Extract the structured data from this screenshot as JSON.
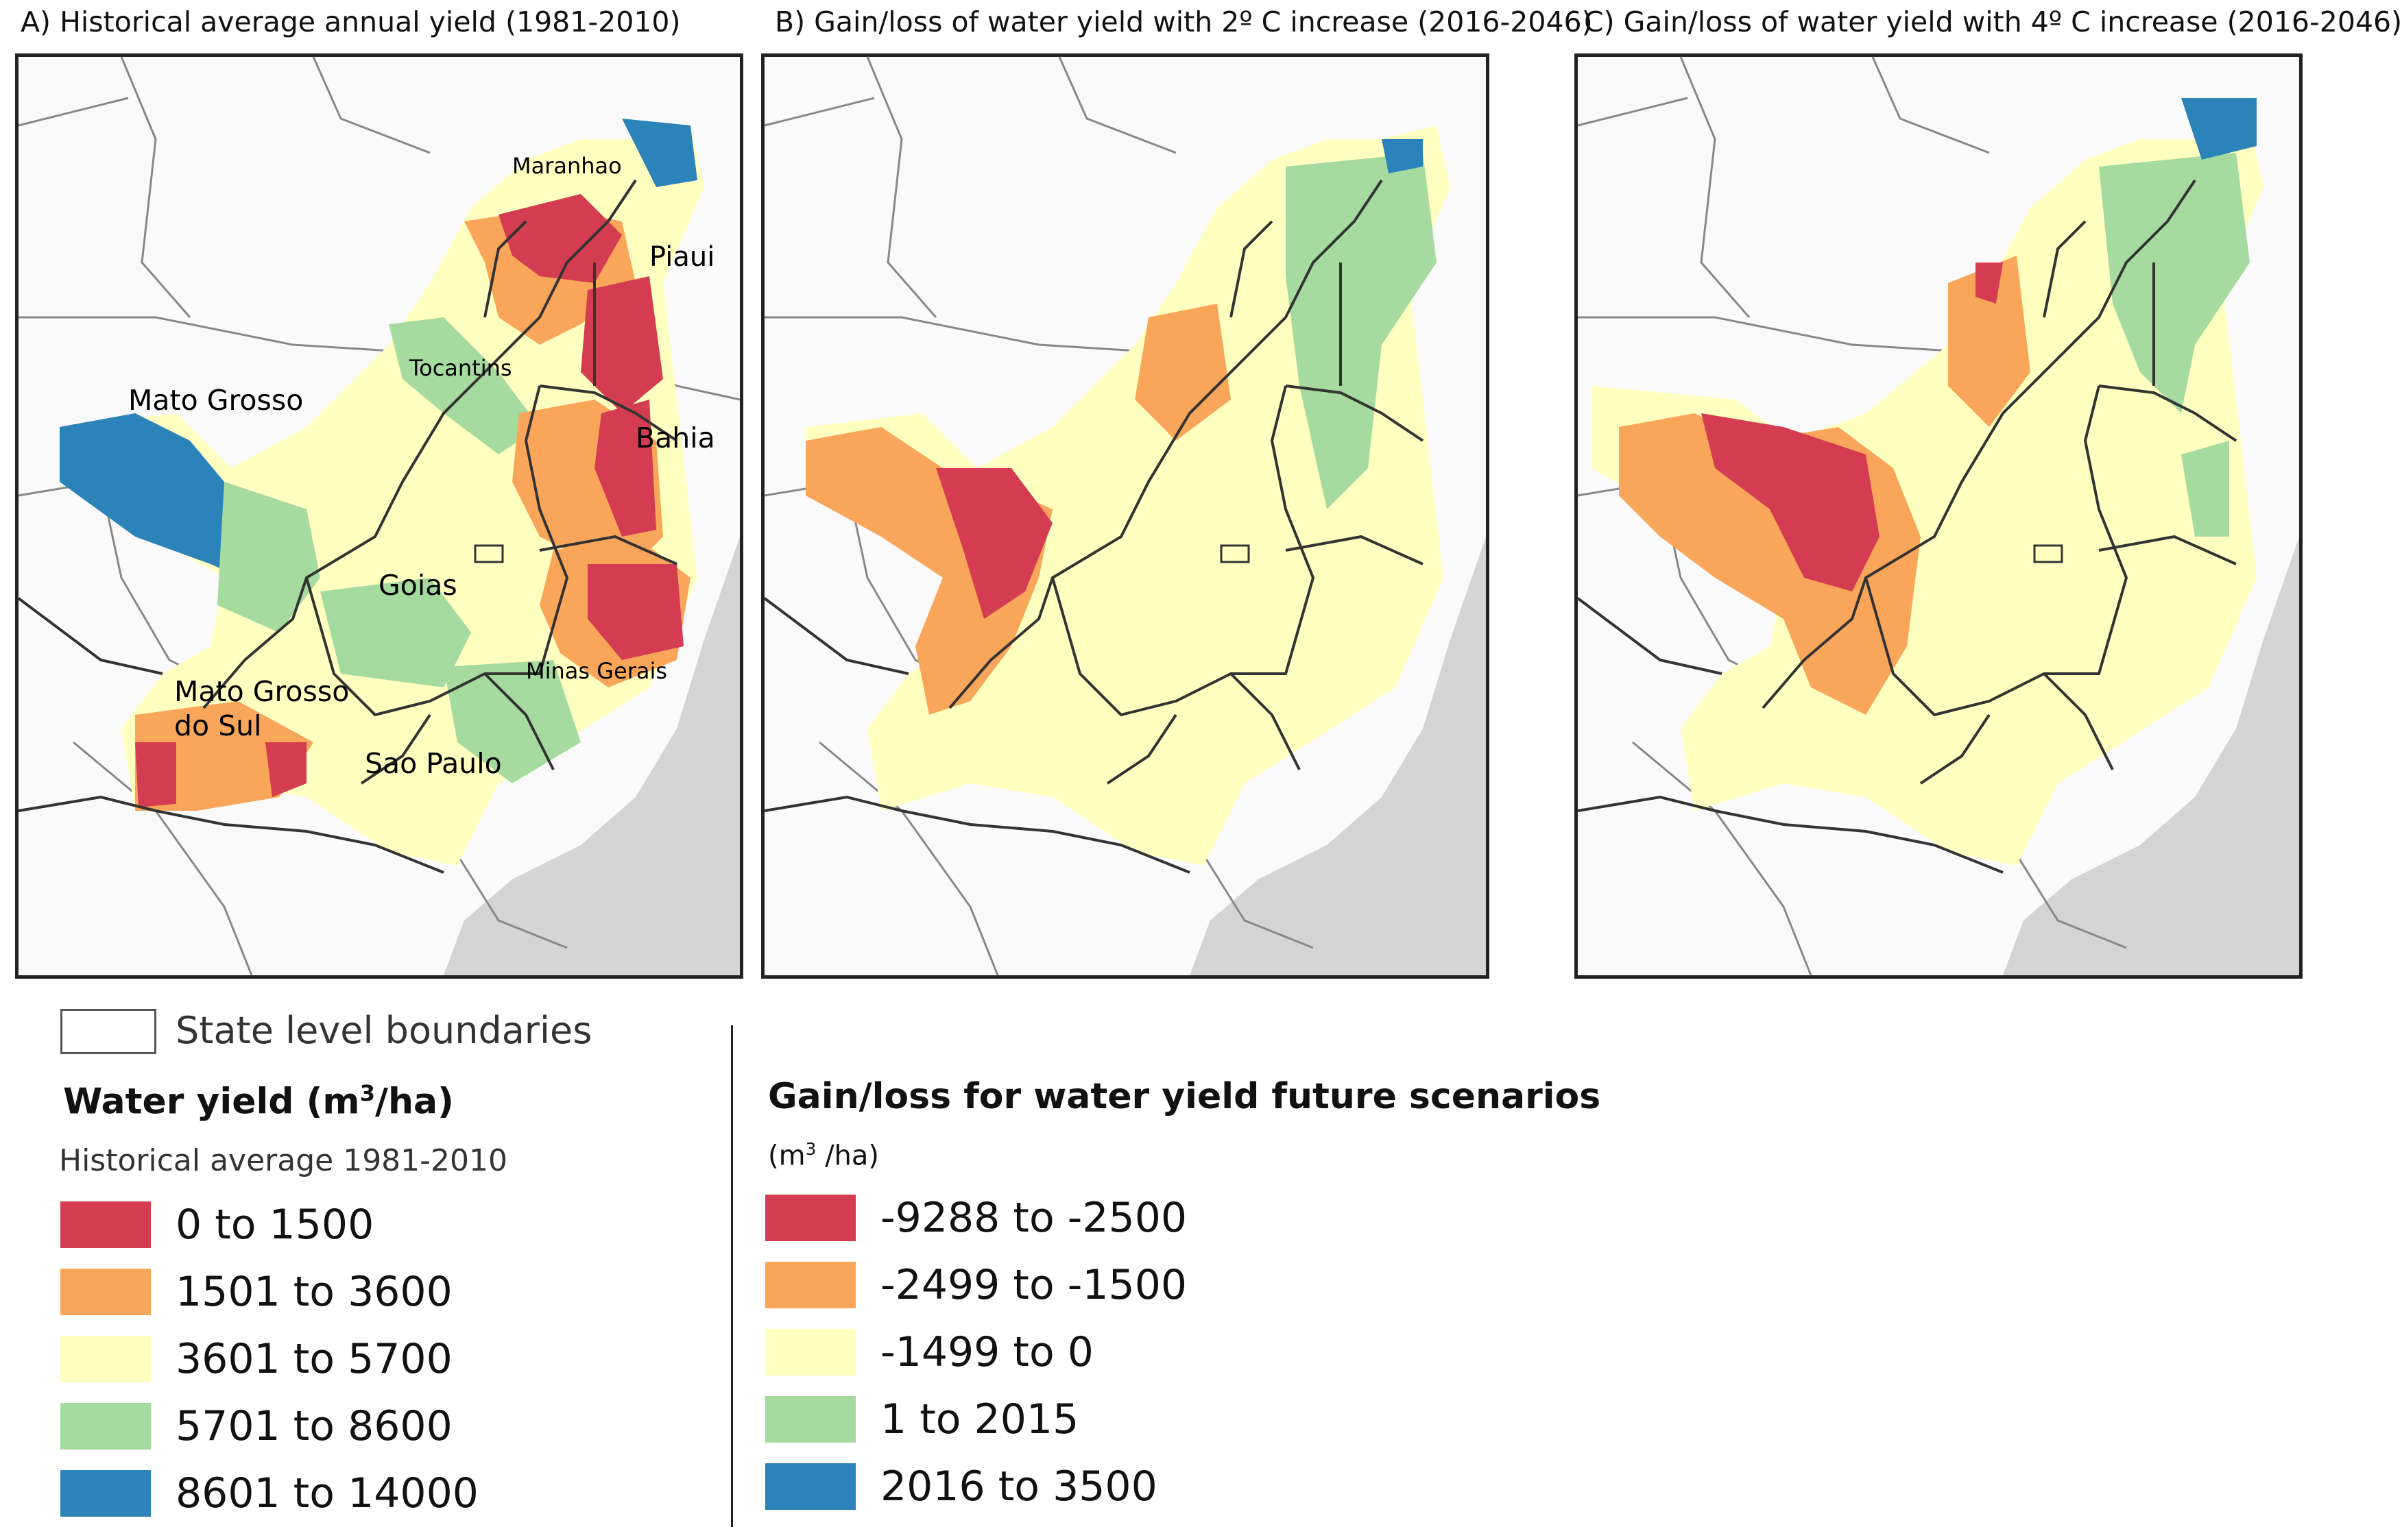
{
  "panels": [
    {
      "title": "A) Historical average annual yield (1981-2010)"
    },
    {
      "title": "B) Gain/loss of water yield with 2º C increase (2016-2046)"
    },
    {
      "title": "C) Gain/loss of water yield with 4º C increase (2016-2046)"
    }
  ],
  "state_labels": {
    "maranhao": "Maranhao",
    "piaui": "Piaui",
    "tocantins": "Tocantins",
    "mato_grosso": "Mato Grosso",
    "bahia": "Bahia",
    "goias": "Goias",
    "minas_gerais": "Minas Gerais",
    "ms_line1": "Mato Grosso",
    "ms_line2": "do Sul",
    "sao_paulo": "Sao Paulo"
  },
  "legend": {
    "boundaries_label": "State level boundaries",
    "historical": {
      "title_prefix": "Water yield (m",
      "title_sup": "3",
      "title_suffix": "/ha)",
      "subtitle": "Historical average 1981-2010",
      "classes": [
        {
          "label": "0 to 1500",
          "color": "#d43d51"
        },
        {
          "label": "1501 to 3600",
          "color": "#f9a65a"
        },
        {
          "label": "3601 to 5700",
          "color": "#ffffbf"
        },
        {
          "label": "5701 to 8600",
          "color": "#a6dba0"
        },
        {
          "label": "8601 to 14000",
          "color": "#2b83ba"
        }
      ]
    },
    "future": {
      "title": "Gain/loss for water yield future scenarios",
      "unit_prefix": "(m",
      "unit_sup": "3",
      "unit_suffix": " /ha)",
      "classes": [
        {
          "label": "-9288 to -2500",
          "color": "#d43d51"
        },
        {
          "label": "-2499 to -1500",
          "color": "#f9a65a"
        },
        {
          "label": "-1499 to 0",
          "color": "#ffffbf"
        },
        {
          "label": "1 to 2015",
          "color": "#a6dba0"
        },
        {
          "label": "2016 to 3500",
          "color": "#2b83ba"
        }
      ]
    }
  },
  "colors": {
    "red": "#d43d51",
    "orange": "#f9a65a",
    "yellow": "#ffffbf",
    "green": "#a6dba0",
    "blue": "#2b83ba",
    "land": "#ffffff",
    "ocean": "#d4d4d4",
    "border": "#444444"
  }
}
